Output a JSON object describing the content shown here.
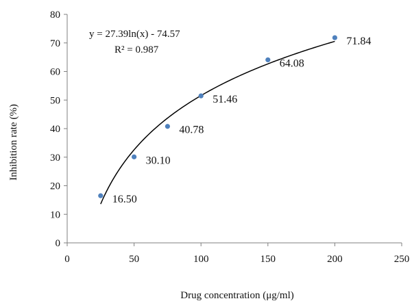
{
  "chart_data": {
    "type": "scatter",
    "xlabel": "Drug concentration  (μg/ml)",
    "ylabel": "Inhibition rate (%)",
    "xlim": [
      0,
      250
    ],
    "ylim": [
      0,
      80
    ],
    "xticks": [
      0,
      50,
      100,
      150,
      200,
      250
    ],
    "yticks": [
      0,
      10,
      20,
      30,
      40,
      50,
      60,
      70,
      80
    ],
    "grid": false,
    "marker_color": "#4f81bd",
    "trendline_color": "#000000",
    "points": [
      {
        "x": 25,
        "y": 16.5,
        "label": "16.50"
      },
      {
        "x": 50,
        "y": 30.1,
        "label": "30.10"
      },
      {
        "x": 75,
        "y": 40.78,
        "label": "40.78"
      },
      {
        "x": 100,
        "y": 51.46,
        "label": "51.46"
      },
      {
        "x": 150,
        "y": 64.08,
        "label": "64.08"
      },
      {
        "x": 200,
        "y": 71.84,
        "label": "71.84"
      }
    ],
    "trendline": {
      "type": "logarithmic",
      "a": 27.39,
      "b": -74.57,
      "x_range": [
        25,
        200
      ],
      "equation": "y = 27.39ln(x) - 74.57",
      "r_squared": "R² = 0.987"
    }
  }
}
